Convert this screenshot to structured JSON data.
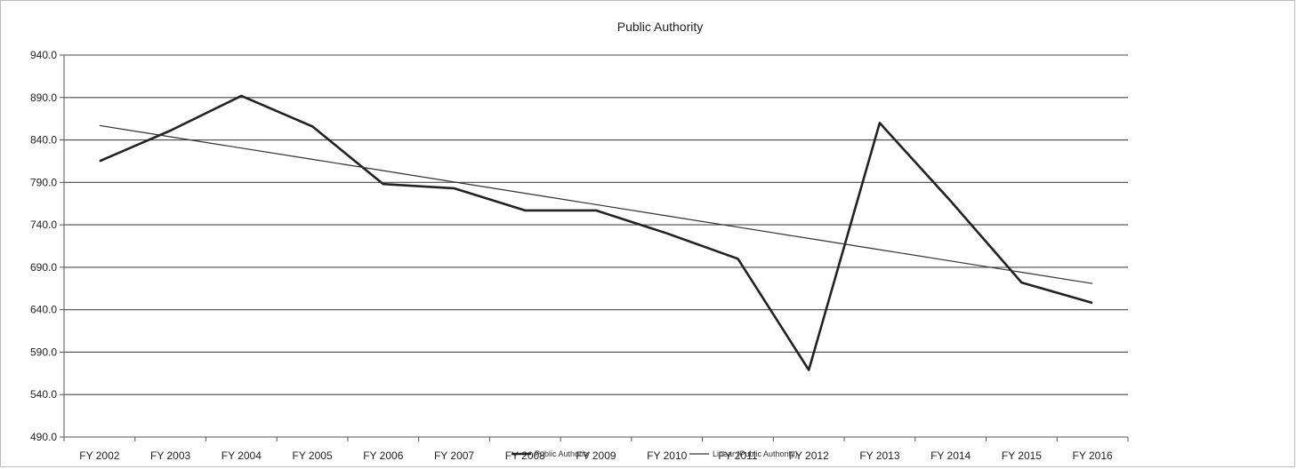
{
  "chart_data": {
    "type": "line",
    "title": "Public Authority",
    "xlabel": "",
    "ylabel": "",
    "categories": [
      "FY 2002",
      "FY 2003",
      "FY 2004",
      "FY 2005",
      "FY 2006",
      "FY 2007",
      "FY 2008",
      "FY 2009",
      "FY 2010",
      "FY 2011",
      "FY 2012",
      "FY 2013",
      "FY 2014",
      "FY 2015",
      "FY 2016"
    ],
    "y_ticks": [
      "490.0",
      "540.0",
      "590.0",
      "640.0",
      "690.0",
      "740.0",
      "790.0",
      "840.0",
      "890.0",
      "940.0"
    ],
    "ylim": [
      490,
      940
    ],
    "grid": true,
    "legend_position": "bottom",
    "series": [
      {
        "name": "Public Authority",
        "values": [
          815,
          851,
          892,
          856,
          788,
          783,
          757,
          757,
          730,
          700,
          569,
          860,
          768,
          672,
          648
        ],
        "color": "#222222"
      },
      {
        "name": "Linear (Public Authority)",
        "values": [
          857,
          843.7,
          830.4,
          817.1,
          803.8,
          790.5,
          777.2,
          763.9,
          750.6,
          737.3,
          724.0,
          710.7,
          697.4,
          684.1,
          670.8
        ],
        "color": "#333333",
        "kind": "trendline"
      }
    ]
  }
}
